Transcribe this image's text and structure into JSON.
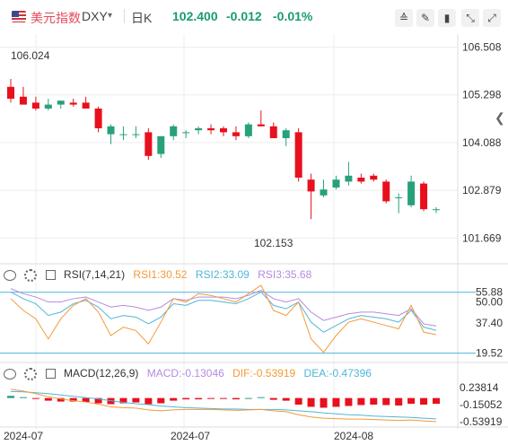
{
  "header": {
    "name": "美元指数",
    "code": "DXY",
    "period": "日K",
    "price": "102.400",
    "change": "-0.012",
    "change_pct": "-0.01%",
    "toolbar": [
      "measure-icon",
      "pen-icon",
      "fullscreen-icon",
      "collapse-icon"
    ]
  },
  "colors": {
    "up": "#26a17b",
    "down": "#e8101d",
    "rsi1": "#f39a3a",
    "rsi2": "#4fb6d8",
    "rsi3": "#b48be0",
    "dif": "#f39a3a",
    "dea": "#4fb6d8"
  },
  "main_chart": {
    "y_ticks": [
      "106.508",
      "105.298",
      "104.088",
      "102.879",
      "101.669"
    ],
    "y_range": [
      101.2,
      106.7
    ],
    "high_label": "106.024",
    "low_label": "102.153"
  },
  "rsi": {
    "title": "RSI(7,14,21)",
    "rsi1_label": "RSI1:30.52",
    "rsi2_label": "RSI2:33.09",
    "rsi3_label": "RSI3:35.68",
    "y_ticks": [
      "55.88",
      "50.00",
      "37.40",
      "19.52"
    ],
    "level_high": 55.88,
    "level_low": 19.52
  },
  "macd": {
    "title": "MACD(12,26,9)",
    "macd_label": "MACD:-0.13046",
    "dif_label": "DIF:-0.53919",
    "dea_label": "DEA:-0.47396",
    "y_ticks": [
      "0.23814",
      "-0.15052",
      "-0.53919"
    ]
  },
  "x_ticks": [
    "2024-07",
    "2024-07",
    "2024-08"
  ],
  "chart_data": {
    "type": "candlestick",
    "candles": [
      {
        "o": 105.5,
        "h": 105.7,
        "l": 105.1,
        "c": 105.2
      },
      {
        "o": 105.25,
        "h": 105.5,
        "l": 105.05,
        "c": 105.05
      },
      {
        "o": 105.1,
        "h": 105.25,
        "l": 104.9,
        "c": 104.95
      },
      {
        "o": 104.95,
        "h": 105.2,
        "l": 104.9,
        "c": 105.05
      },
      {
        "o": 105.05,
        "h": 105.15,
        "l": 104.95,
        "c": 105.15
      },
      {
        "o": 105.1,
        "h": 105.2,
        "l": 105.0,
        "c": 105.05
      },
      {
        "o": 105.1,
        "h": 105.25,
        "l": 104.95,
        "c": 104.95
      },
      {
        "o": 104.95,
        "h": 105.0,
        "l": 104.35,
        "c": 104.45
      },
      {
        "o": 104.3,
        "h": 104.55,
        "l": 104.05,
        "c": 104.5
      },
      {
        "o": 104.3,
        "h": 104.5,
        "l": 104.15,
        "c": 104.3
      },
      {
        "o": 104.3,
        "h": 104.5,
        "l": 104.2,
        "c": 104.3
      },
      {
        "o": 104.35,
        "h": 104.45,
        "l": 103.65,
        "c": 103.75
      },
      {
        "o": 103.8,
        "h": 104.25,
        "l": 103.7,
        "c": 104.25
      },
      {
        "o": 104.25,
        "h": 104.55,
        "l": 104.15,
        "c": 104.5
      },
      {
        "o": 104.35,
        "h": 104.4,
        "l": 104.2,
        "c": 104.35
      },
      {
        "o": 104.4,
        "h": 104.5,
        "l": 104.3,
        "c": 104.45
      },
      {
        "o": 104.45,
        "h": 104.55,
        "l": 104.3,
        "c": 104.4
      },
      {
        "o": 104.45,
        "h": 104.5,
        "l": 104.25,
        "c": 104.35
      },
      {
        "o": 104.35,
        "h": 104.5,
        "l": 104.15,
        "c": 104.25
      },
      {
        "o": 104.25,
        "h": 104.6,
        "l": 104.2,
        "c": 104.55
      },
      {
        "o": 104.55,
        "h": 104.9,
        "l": 104.5,
        "c": 104.5
      },
      {
        "o": 104.5,
        "h": 104.6,
        "l": 104.2,
        "c": 104.2
      },
      {
        "o": 104.2,
        "h": 104.45,
        "l": 104.0,
        "c": 104.4
      },
      {
        "o": 104.35,
        "h": 104.45,
        "l": 103.1,
        "c": 103.2
      },
      {
        "o": 103.15,
        "h": 103.3,
        "l": 102.15,
        "c": 102.85
      },
      {
        "o": 102.75,
        "h": 103.15,
        "l": 102.7,
        "c": 102.9
      },
      {
        "o": 102.95,
        "h": 103.25,
        "l": 102.9,
        "c": 103.15
      },
      {
        "o": 103.1,
        "h": 103.6,
        "l": 103.0,
        "c": 103.25
      },
      {
        "o": 103.2,
        "h": 103.3,
        "l": 103.05,
        "c": 103.1
      },
      {
        "o": 103.25,
        "h": 103.3,
        "l": 103.1,
        "c": 103.15
      },
      {
        "o": 103.1,
        "h": 103.15,
        "l": 102.55,
        "c": 102.6
      },
      {
        "o": 102.7,
        "h": 102.8,
        "l": 102.3,
        "c": 102.7
      },
      {
        "o": 102.5,
        "h": 103.25,
        "l": 102.45,
        "c": 103.1
      },
      {
        "o": 103.05,
        "h": 103.1,
        "l": 102.35,
        "c": 102.4
      },
      {
        "o": 102.4,
        "h": 102.45,
        "l": 102.3,
        "c": 102.4
      }
    ],
    "rsi1": [
      52,
      45,
      40,
      28,
      40,
      48,
      52,
      44,
      30,
      35,
      33,
      25,
      38,
      52,
      50,
      55,
      54,
      52,
      50,
      55,
      60,
      45,
      42,
      50,
      28,
      20,
      30,
      38,
      40,
      38,
      36,
      34,
      48,
      32,
      30.52
    ],
    "rsi2": [
      56,
      52,
      49,
      42,
      44,
      49,
      51,
      47,
      40,
      42,
      41,
      37,
      41,
      49,
      48,
      51,
      51,
      50,
      49,
      52,
      56,
      48,
      46,
      50,
      38,
      32,
      36,
      40,
      42,
      41,
      40,
      38,
      45,
      35,
      33.09
    ],
    "rsi3": [
      58,
      55,
      53,
      50,
      50,
      52,
      53,
      50,
      47,
      48,
      47,
      45,
      47,
      52,
      51,
      53,
      53,
      53,
      52,
      54,
      57,
      52,
      50,
      52,
      44,
      39,
      41,
      43,
      44,
      44,
      43,
      42,
      46,
      37,
      35.68
    ],
    "macd_hist": [
      0.05,
      0.02,
      -0.02,
      -0.06,
      -0.08,
      -0.08,
      -0.09,
      -0.12,
      -0.14,
      -0.12,
      -0.1,
      -0.14,
      -0.12,
      -0.06,
      -0.03,
      -0.03,
      -0.02,
      -0.02,
      -0.03,
      0.0,
      0.02,
      -0.04,
      -0.06,
      -0.15,
      -0.2,
      -0.22,
      -0.2,
      -0.18,
      -0.16,
      -0.15,
      -0.16,
      -0.17,
      -0.13,
      -0.15,
      -0.13046
    ],
    "dif": [
      0.2,
      0.16,
      0.1,
      0.03,
      -0.02,
      -0.06,
      -0.09,
      -0.14,
      -0.2,
      -0.22,
      -0.23,
      -0.27,
      -0.29,
      -0.27,
      -0.26,
      -0.26,
      -0.26,
      -0.27,
      -0.28,
      -0.27,
      -0.26,
      -0.29,
      -0.31,
      -0.38,
      -0.43,
      -0.46,
      -0.47,
      -0.48,
      -0.48,
      -0.49,
      -0.5,
      -0.51,
      -0.5,
      -0.52,
      -0.53919
    ],
    "dea": [
      0.15,
      0.14,
      0.12,
      0.1,
      0.07,
      0.04,
      0.01,
      -0.02,
      -0.06,
      -0.1,
      -0.13,
      -0.15,
      -0.18,
      -0.2,
      -0.22,
      -0.23,
      -0.24,
      -0.25,
      -0.25,
      -0.26,
      -0.26,
      -0.26,
      -0.27,
      -0.29,
      -0.31,
      -0.34,
      -0.36,
      -0.38,
      -0.39,
      -0.41,
      -0.42,
      -0.43,
      -0.44,
      -0.46,
      -0.47396
    ]
  }
}
